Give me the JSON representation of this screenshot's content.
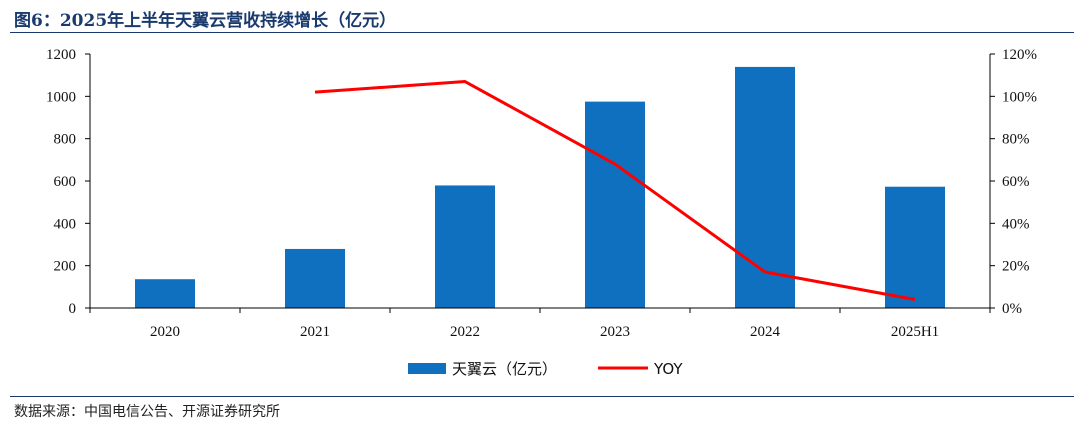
{
  "figure_title": "图6：2025年上半年天翼云营收持续增长（亿元）",
  "source": "数据来源：中国电信公告、开源证券研究所",
  "colors": {
    "bar": "#0f70bf",
    "line": "#ff0000",
    "title": "#1a3a6e"
  },
  "chart_data": {
    "type": "bar",
    "categories": [
      "2020",
      "2021",
      "2022",
      "2023",
      "2024",
      "2025H1"
    ],
    "series": [
      {
        "name": "天翼云（亿元）",
        "type": "bar",
        "axis": "left",
        "values": [
          136,
          279,
          579,
          975,
          1139,
          573
        ]
      },
      {
        "name": "YOY",
        "type": "line",
        "axis": "right",
        "unit": "%",
        "values": [
          null,
          102,
          107,
          68,
          17,
          4
        ]
      }
    ],
    "y_left": {
      "ylim": [
        0,
        1200
      ],
      "ticks": [
        "0",
        "200",
        "400",
        "600",
        "800",
        "1000",
        "1200"
      ]
    },
    "y_right": {
      "ylim": [
        0,
        120
      ],
      "ticks": [
        "0%",
        "20%",
        "40%",
        "60%",
        "80%",
        "100%",
        "120%"
      ]
    },
    "legend_position": "bottom-center",
    "grid": false
  }
}
